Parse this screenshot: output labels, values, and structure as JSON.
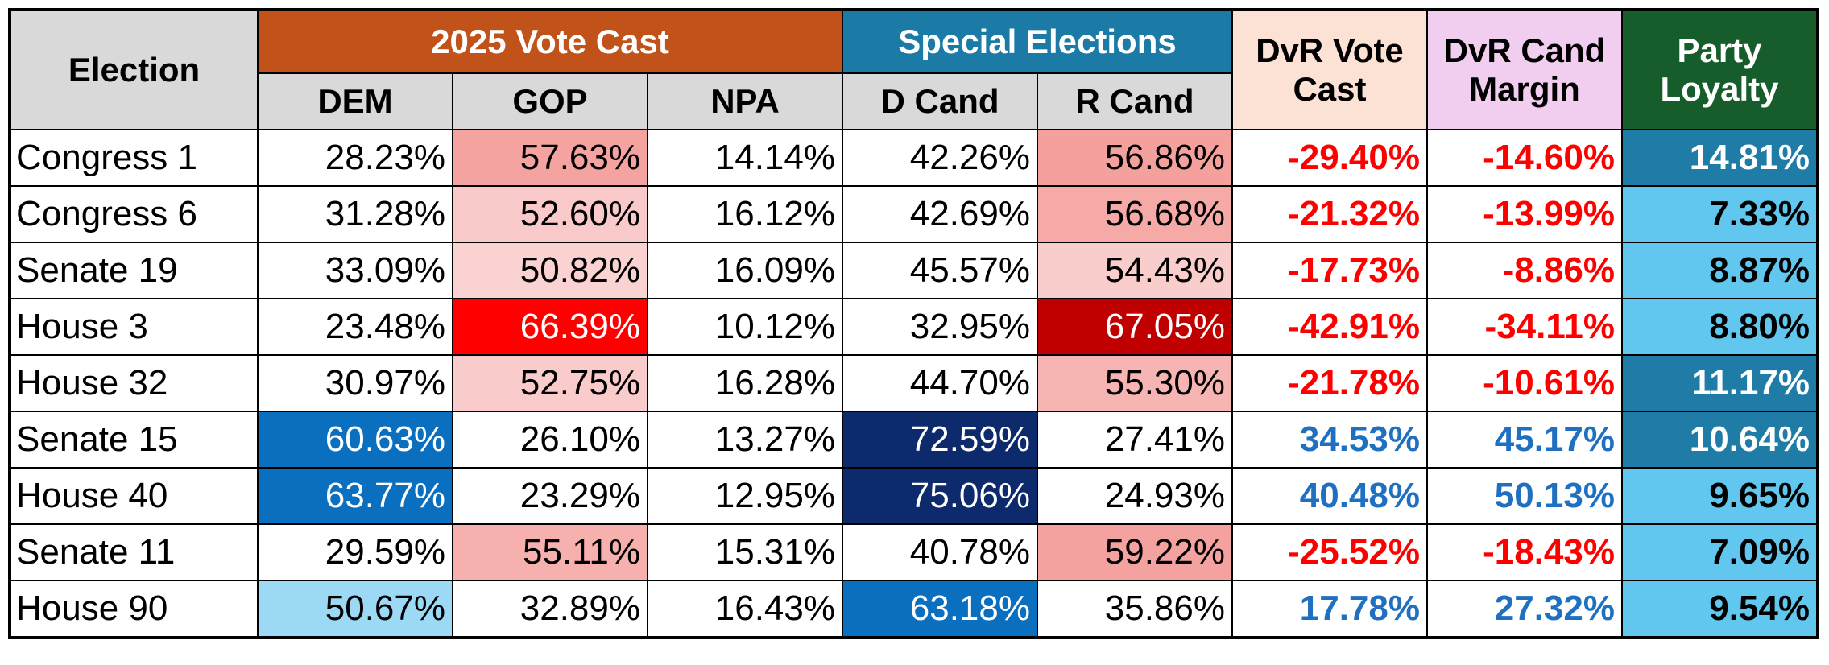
{
  "table": {
    "election_header": "Election",
    "groups": [
      {
        "label": "2025 Vote Cast",
        "color": "#c0521a",
        "columns": [
          "DEM",
          "GOP",
          "NPA"
        ]
      },
      {
        "label": "Special Elections",
        "color": "#1b7ba6",
        "columns": [
          "D Cand",
          "R Cand"
        ]
      }
    ],
    "single_headers": [
      {
        "label": "DvR Vote Cast",
        "color": "#fbe2d5"
      },
      {
        "label": "DvR Cand Margin",
        "color": "#f1cdf0"
      },
      {
        "label": "Party Loyalty",
        "color": "#175d2c"
      }
    ],
    "rows": [
      [
        "Congress 1",
        "28.23%",
        "57.63%",
        "14.14%",
        "42.26%",
        "56.86%",
        "-29.40%",
        "-14.60%",
        "14.81%"
      ],
      [
        "Congress 6",
        "31.28%",
        "52.60%",
        "16.12%",
        "42.69%",
        "56.68%",
        "-21.32%",
        "-13.99%",
        "7.33%"
      ],
      [
        "Senate 19",
        "33.09%",
        "50.82%",
        "16.09%",
        "45.57%",
        "54.43%",
        "-17.73%",
        "-8.86%",
        "8.87%"
      ],
      [
        "House 3",
        "23.48%",
        "66.39%",
        "10.12%",
        "32.95%",
        "67.05%",
        "-42.91%",
        "-34.11%",
        "8.80%"
      ],
      [
        "House 32",
        "30.97%",
        "52.75%",
        "16.28%",
        "44.70%",
        "55.30%",
        "-21.78%",
        "-10.61%",
        "11.17%"
      ],
      [
        "Senate 15",
        "60.63%",
        "26.10%",
        "13.27%",
        "72.59%",
        "27.41%",
        "34.53%",
        "45.17%",
        "10.64%"
      ],
      [
        "House 40",
        "63.77%",
        "23.29%",
        "12.95%",
        "75.06%",
        "24.93%",
        "40.48%",
        "50.13%",
        "9.65%"
      ],
      [
        "Senate 11",
        "29.59%",
        "55.11%",
        "15.31%",
        "40.78%",
        "59.22%",
        "-25.52%",
        "-18.43%",
        "7.09%"
      ],
      [
        "House 90",
        "50.67%",
        "32.89%",
        "16.43%",
        "63.18%",
        "35.86%",
        "17.78%",
        "27.32%",
        "9.54%"
      ]
    ],
    "fills": [
      [
        null,
        null,
        "#f4a3a0",
        null,
        null,
        "#f4a19e",
        null,
        null,
        "#1f7ca6"
      ],
      [
        null,
        null,
        "#f9cac9",
        null,
        null,
        "#f5aaa8",
        null,
        null,
        "#62c7ef"
      ],
      [
        null,
        null,
        "#fad2d1",
        null,
        null,
        "#f9cdcc",
        null,
        null,
        "#62c7ef"
      ],
      [
        null,
        null,
        "#ff0000",
        null,
        null,
        "#c00000",
        null,
        null,
        "#62c7ef"
      ],
      [
        null,
        null,
        "#f9cbca",
        null,
        null,
        "#f6b4b3",
        null,
        null,
        "#1f7ca6"
      ],
      [
        null,
        "#0b6fc0",
        null,
        null,
        "#0d2a6c",
        null,
        null,
        null,
        "#1f7ca6"
      ],
      [
        null,
        "#0b6fc0",
        null,
        null,
        "#0d2a6c",
        null,
        null,
        null,
        "#62c7ef"
      ],
      [
        null,
        null,
        "#f6b1af",
        null,
        null,
        "#f4a2a0",
        null,
        null,
        "#62c7ef"
      ],
      [
        null,
        "#9bd9f5",
        null,
        null,
        "#0b6fc0",
        null,
        null,
        null,
        "#62c7ef"
      ]
    ]
  }
}
